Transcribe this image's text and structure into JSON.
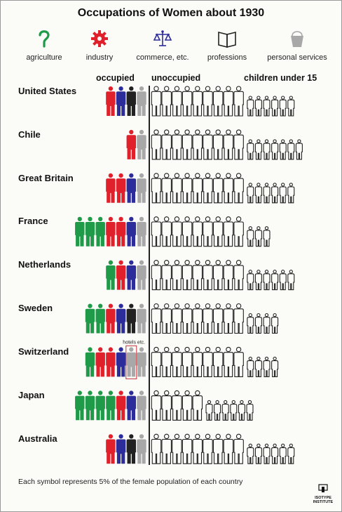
{
  "title": "Occupations of Women about 1930",
  "legend": [
    {
      "key": "agriculture",
      "label": "agriculture",
      "icon": "sickle-icon"
    },
    {
      "key": "industry",
      "label": "industry",
      "icon": "gear-icon"
    },
    {
      "key": "commerce",
      "label": "commerce, etc.",
      "icon": "scales-icon"
    },
    {
      "key": "professions",
      "label": "professions",
      "icon": "book-icon"
    },
    {
      "key": "personal",
      "label": "personal services",
      "icon": "bucket-icon"
    }
  ],
  "column_headers": {
    "occupied": "occupied",
    "unoccupied": "unoccupied",
    "children": "children under 15"
  },
  "colors": {
    "agriculture": "#1f9a48",
    "industry": "#e0202a",
    "commerce": "#2c2c9a",
    "professions": "#222222",
    "personal": "#a8a8a8",
    "hotels_outline": "#c0303a"
  },
  "chart_data": {
    "type": "table",
    "title": "Occupations of Women about 1930",
    "unit": "Each symbol represents 5% of the female population of each country",
    "categories": [
      "United States",
      "Chile",
      "Great Britain",
      "France",
      "Netherlands",
      "Sweden",
      "Switzerland",
      "Japan",
      "Australia"
    ],
    "rows": [
      {
        "country": "United States",
        "agriculture": 0,
        "industry": 1,
        "commerce": 1,
        "professions": 1,
        "personal": 1,
        "unoccupied": 9,
        "children": 6
      },
      {
        "country": "Chile",
        "agriculture": 0,
        "industry": 1,
        "commerce": 0,
        "professions": 0,
        "personal": 1,
        "unoccupied": 9,
        "children": 7
      },
      {
        "country": "Great Britain",
        "agriculture": 0,
        "industry": 2,
        "commerce": 1,
        "professions": 0,
        "personal": 1,
        "unoccupied": 9,
        "children": 6
      },
      {
        "country": "France",
        "agriculture": 3,
        "industry": 2,
        "commerce": 1,
        "professions": 0,
        "personal": 1,
        "unoccupied": 9,
        "children": 3
      },
      {
        "country": "Netherlands",
        "agriculture": 1,
        "industry": 1,
        "commerce": 1,
        "professions": 0,
        "personal": 1,
        "unoccupied": 9,
        "children": 6
      },
      {
        "country": "Sweden",
        "agriculture": 2,
        "industry": 1,
        "commerce": 1,
        "professions": 1,
        "personal": 1,
        "unoccupied": 9,
        "children": 4
      },
      {
        "country": "Switzerland",
        "agriculture": 1,
        "industry": 2,
        "commerce": 1,
        "professions": 0,
        "personal": 2,
        "unoccupied": 9,
        "children": 4
      },
      {
        "country": "Japan",
        "agriculture": 4,
        "industry": 1,
        "commerce": 1,
        "professions": 0,
        "personal": 1,
        "unoccupied": 5,
        "children": 6
      },
      {
        "country": "Australia",
        "agriculture": 0,
        "industry": 1,
        "commerce": 1,
        "professions": 1,
        "personal": 1,
        "unoccupied": 9,
        "children": 6
      }
    ],
    "annotations": [
      {
        "country": "Switzerland",
        "text": "hotels etc."
      }
    ]
  },
  "footnote": "Each symbol represents 5% of the female population of each country",
  "logo": {
    "line1": "ISOTYPE",
    "line2": "INSTITUTE"
  }
}
